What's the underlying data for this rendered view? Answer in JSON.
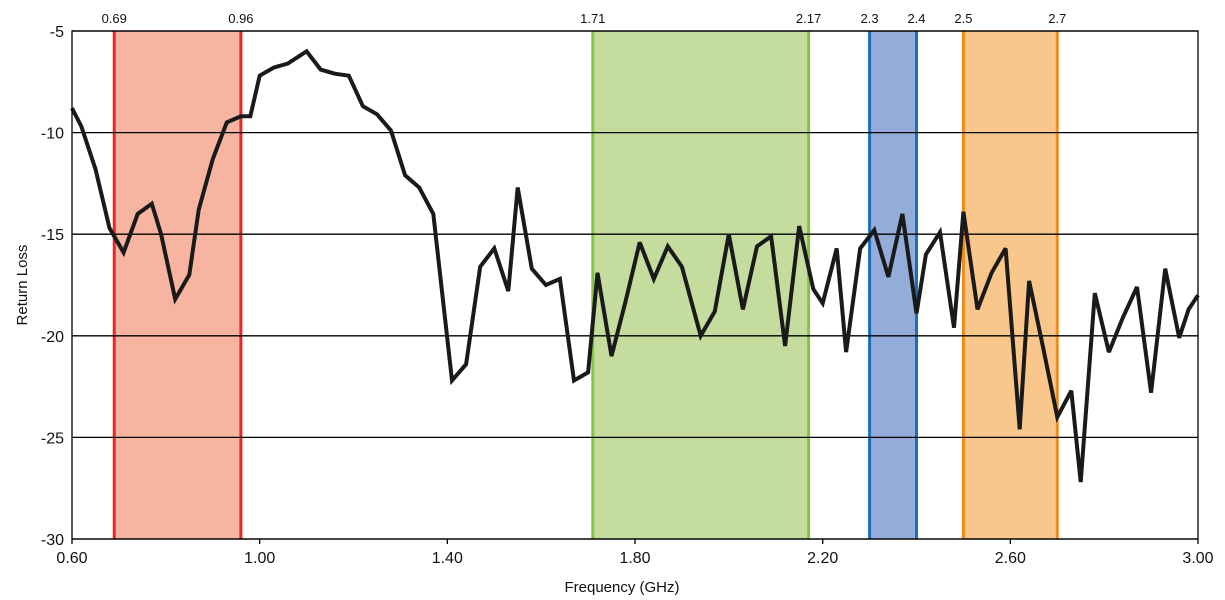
{
  "chart_data": {
    "type": "line",
    "xlabel": "Frequency (GHz)",
    "ylabel": "Return Loss",
    "xlim": [
      0.6,
      3.0
    ],
    "ylim": [
      -30,
      -5
    ],
    "x_ticks": [
      "0.60",
      "1.00",
      "1.40",
      "1.80",
      "2.20",
      "2.60",
      "3.00"
    ],
    "y_ticks": [
      "-5",
      "-10",
      "-15",
      "-20",
      "-25",
      "-30"
    ],
    "grid": "horizontal",
    "bands": [
      {
        "start": 0.69,
        "end": 0.96,
        "start_label": "0.69",
        "end_label": "0.96",
        "fill": "#f7b5a1",
        "line": "#e8262b"
      },
      {
        "start": 1.71,
        "end": 2.17,
        "start_label": "1.71",
        "end_label": "2.17",
        "fill": "#c4dd9e",
        "line": "#86c440"
      },
      {
        "start": 2.3,
        "end": 2.4,
        "start_label": "2.3",
        "end_label": "2.4",
        "fill": "#93acd9",
        "line": "#1b6fb8"
      },
      {
        "start": 2.5,
        "end": 2.7,
        "start_label": "2.5",
        "end_label": "2.7",
        "fill": "#f9c78c",
        "line": "#f08c1e"
      }
    ],
    "series": [
      {
        "color": "#1a1a1a",
        "x": [
          0.6,
          0.62,
          0.65,
          0.68,
          0.71,
          0.74,
          0.77,
          0.79,
          0.82,
          0.85,
          0.87,
          0.9,
          0.93,
          0.96,
          0.98,
          1.0,
          1.03,
          1.06,
          1.1,
          1.13,
          1.16,
          1.19,
          1.22,
          1.25,
          1.28,
          1.31,
          1.34,
          1.37,
          1.41,
          1.44,
          1.47,
          1.5,
          1.53,
          1.55,
          1.58,
          1.61,
          1.64,
          1.67,
          1.7,
          1.72,
          1.75,
          1.78,
          1.81,
          1.84,
          1.87,
          1.9,
          1.94,
          1.97,
          2.0,
          2.03,
          2.06,
          2.09,
          2.12,
          2.15,
          2.18,
          2.2,
          2.23,
          2.25,
          2.28,
          2.31,
          2.34,
          2.37,
          2.4,
          2.42,
          2.45,
          2.48,
          2.5,
          2.53,
          2.56,
          2.59,
          2.62,
          2.64,
          2.67,
          2.7,
          2.73,
          2.75,
          2.78,
          2.81,
          2.84,
          2.87,
          2.9,
          2.93,
          2.96,
          2.98,
          3.0
        ],
        "y": [
          -8.8,
          -9.7,
          -11.8,
          -14.7,
          -15.9,
          -14.0,
          -13.5,
          -15.0,
          -18.2,
          -17.0,
          -13.8,
          -11.3,
          -9.5,
          -9.2,
          -9.2,
          -7.2,
          -6.8,
          -6.6,
          -6.0,
          -6.9,
          -7.1,
          -7.2,
          -8.7,
          -9.1,
          -9.9,
          -12.1,
          -12.7,
          -14.0,
          -22.2,
          -21.4,
          -16.6,
          -15.7,
          -17.8,
          -12.7,
          -16.7,
          -17.5,
          -17.2,
          -22.2,
          -21.8,
          -16.9,
          -21.0,
          -18.3,
          -15.4,
          -17.2,
          -15.6,
          -16.6,
          -20.0,
          -18.8,
          -15.0,
          -18.7,
          -15.6,
          -15.1,
          -20.5,
          -14.6,
          -17.7,
          -18.4,
          -15.7,
          -20.8,
          -15.7,
          -14.8,
          -17.1,
          -14.0,
          -18.9,
          -16.0,
          -14.9,
          -19.6,
          -13.9,
          -18.7,
          -16.9,
          -15.7,
          -24.6,
          -17.3,
          -20.6,
          -24.0,
          -22.7,
          -27.2,
          -17.9,
          -20.8,
          -19.1,
          -17.6,
          -22.8,
          -16.7,
          -20.1,
          -18.7,
          -18.0
        ]
      }
    ]
  }
}
